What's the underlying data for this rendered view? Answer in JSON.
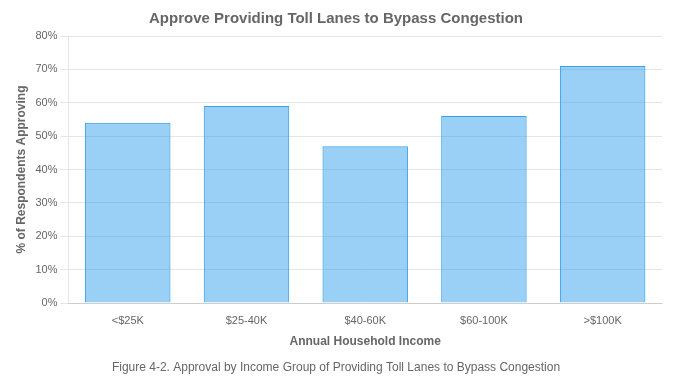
{
  "chart_data": {
    "type": "bar",
    "title": "Approve Providing Toll Lanes to Bypass Congestion",
    "xlabel": "Annual Household Income",
    "ylabel": "% of Respondents Approving",
    "caption": "Figure 4-2. Approval by Income Group of Providing Toll Lanes to Bypass Congestion",
    "categories": [
      "<$25K",
      "$25-40K",
      "$40-60K",
      "$60-100K",
      ">$100K"
    ],
    "values": [
      54,
      59,
      47,
      56,
      71
    ],
    "ylim": [
      0,
      80
    ],
    "yticks": [
      {
        "value": 0,
        "label": "0%"
      },
      {
        "value": 10,
        "label": "10%"
      },
      {
        "value": 20,
        "label": "20%"
      },
      {
        "value": 30,
        "label": "30%"
      },
      {
        "value": 40,
        "label": "40%"
      },
      {
        "value": 50,
        "label": "50%"
      },
      {
        "value": 60,
        "label": "60%"
      },
      {
        "value": 70,
        "label": "70%"
      },
      {
        "value": 80,
        "label": "80%"
      }
    ],
    "grid": true
  }
}
